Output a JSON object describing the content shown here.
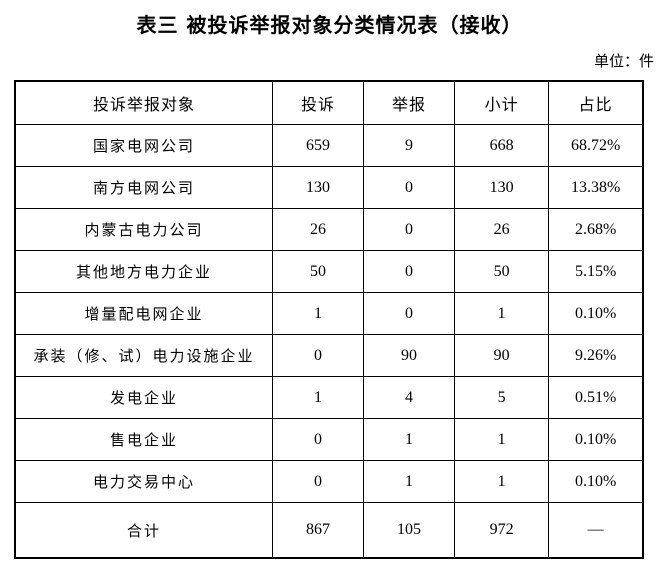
{
  "page": {
    "title": "表三 被投诉举报对象分类情况表（接收）",
    "unit_label": "单位：件"
  },
  "table": {
    "columns": [
      "投诉举报对象",
      "投诉",
      "举报",
      "小计",
      "占比"
    ],
    "rows": [
      [
        "国家电网公司",
        "659",
        "9",
        "668",
        "68.72%"
      ],
      [
        "南方电网公司",
        "130",
        "0",
        "130",
        "13.38%"
      ],
      [
        "内蒙古电力公司",
        "26",
        "0",
        "26",
        "2.68%"
      ],
      [
        "其他地方电力企业",
        "50",
        "0",
        "50",
        "5.15%"
      ],
      [
        "增量配电网企业",
        "1",
        "0",
        "1",
        "0.10%"
      ],
      [
        "承装（修、试）电力设施企业",
        "0",
        "90",
        "90",
        "9.26%"
      ],
      [
        "发电企业",
        "1",
        "4",
        "5",
        "0.51%"
      ],
      [
        "售电企业",
        "0",
        "1",
        "1",
        "0.10%"
      ],
      [
        "电力交易中心",
        "0",
        "1",
        "1",
        "0.10%"
      ],
      [
        "合计",
        "867",
        "105",
        "972",
        "—"
      ]
    ],
    "total_row_label": "合计"
  }
}
